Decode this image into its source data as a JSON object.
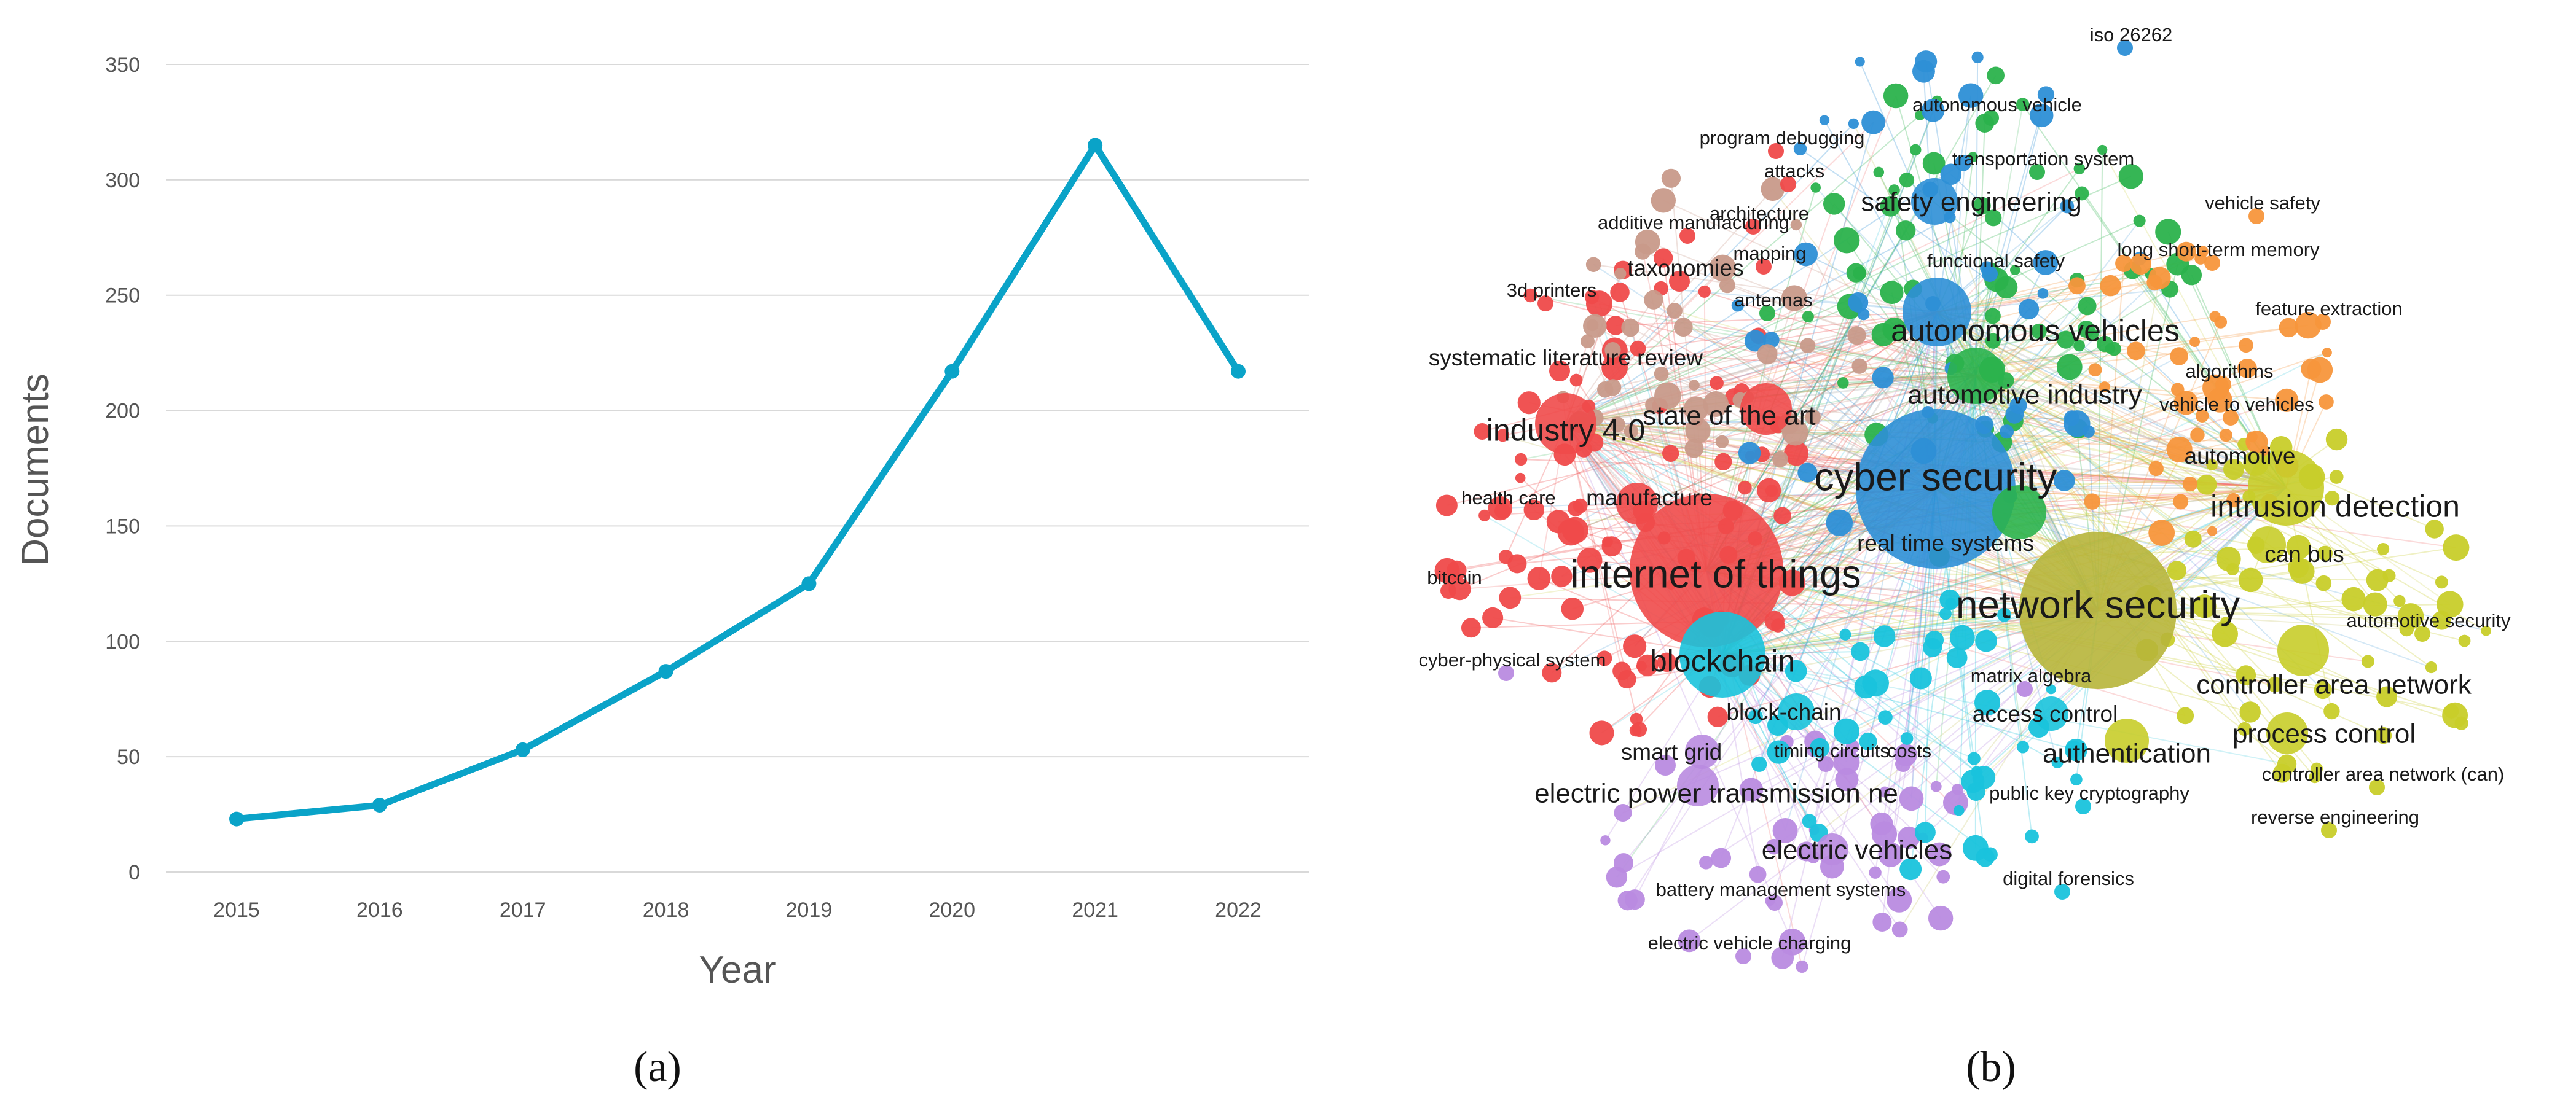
{
  "figure": {
    "panel_a_label": "(a)",
    "panel_b_label": "(b)"
  },
  "chart_data": [
    {
      "type": "line",
      "panel": "(a)",
      "title": "",
      "xlabel": "Year",
      "ylabel": "Documents",
      "categories": [
        "2015",
        "2016",
        "2017",
        "2018",
        "2019",
        "2020",
        "2021",
        "2022"
      ],
      "series": [
        {
          "name": "Documents",
          "values": [
            23,
            29,
            53,
            87,
            125,
            217,
            315,
            217
          ],
          "color": "#0aa3c8"
        }
      ],
      "yticks": [
        0,
        50,
        100,
        150,
        200,
        250,
        300,
        350
      ],
      "ylim": [
        0,
        350
      ],
      "grid": true
    },
    {
      "type": "network",
      "panel": "(b)",
      "clusters": {
        "red": "#ef4a4a",
        "green": "#2bb24c",
        "blue": "#2d8fd6",
        "yellow": "#c8cd2a",
        "purple": "#b98be0",
        "cyan": "#19c3dc",
        "orange": "#f7963c",
        "brown": "#c89a8a",
        "olive": "#b7b53a"
      },
      "keywords": [
        {
          "label": "iso 26262",
          "cluster": "blue",
          "weight": 1
        },
        {
          "label": "autonomous vehicle",
          "cluster": "green",
          "weight": 1
        },
        {
          "label": "program debugging",
          "cluster": "red",
          "weight": 1
        },
        {
          "label": "transportation system",
          "cluster": "green",
          "weight": 1
        },
        {
          "label": "attacks",
          "cluster": "red",
          "weight": 1
        },
        {
          "label": "vehicle safety",
          "cluster": "orange",
          "weight": 1
        },
        {
          "label": "safety engineering",
          "cluster": "blue",
          "weight": 3
        },
        {
          "label": "additive manufacturing",
          "cluster": "red",
          "weight": 1
        },
        {
          "label": "architecture",
          "cluster": "red",
          "weight": 1
        },
        {
          "label": "mapping",
          "cluster": "red",
          "weight": 1
        },
        {
          "label": "functional safety",
          "cluster": "blue",
          "weight": 1
        },
        {
          "label": "long short-term memory",
          "cluster": "orange",
          "weight": 1
        },
        {
          "label": "taxonomies",
          "cluster": "red",
          "weight": 2
        },
        {
          "label": "3d printers",
          "cluster": "red",
          "weight": 1
        },
        {
          "label": "antennas",
          "cluster": "green",
          "weight": 1
        },
        {
          "label": "feature extraction",
          "cluster": "orange",
          "weight": 1
        },
        {
          "label": "autonomous vehicles",
          "cluster": "blue",
          "weight": 4
        },
        {
          "label": "systematic literature review",
          "cluster": "red",
          "weight": 2
        },
        {
          "label": "algorithms",
          "cluster": "orange",
          "weight": 1
        },
        {
          "label": "automotive industry",
          "cluster": "green",
          "weight": 3
        },
        {
          "label": "vehicle to vehicles",
          "cluster": "orange",
          "weight": 1
        },
        {
          "label": "industry 4.0",
          "cluster": "red",
          "weight": 4
        },
        {
          "label": "state of the art",
          "cluster": "red",
          "weight": 3
        },
        {
          "label": "automotive",
          "cluster": "yellow",
          "weight": 2
        },
        {
          "label": "cyber security",
          "cluster": "blue",
          "weight": 5
        },
        {
          "label": "health care",
          "cluster": "red",
          "weight": 1
        },
        {
          "label": "manufacture",
          "cluster": "red",
          "weight": 2
        },
        {
          "label": "intrusion detection",
          "cluster": "yellow",
          "weight": 4
        },
        {
          "label": "real time systems",
          "cluster": "green",
          "weight": 2
        },
        {
          "label": "can bus",
          "cluster": "yellow",
          "weight": 2
        },
        {
          "label": "bitcoin",
          "cluster": "red",
          "weight": 1
        },
        {
          "label": "internet of things",
          "cluster": "red",
          "weight": 5
        },
        {
          "label": "network security",
          "cluster": "olive",
          "weight": 5
        },
        {
          "label": "automotive security",
          "cluster": "yellow",
          "weight": 1
        },
        {
          "label": "cyber-physical system",
          "cluster": "purple",
          "weight": 1
        },
        {
          "label": "blockchain",
          "cluster": "cyan",
          "weight": 4
        },
        {
          "label": "matrix algebra",
          "cluster": "purple",
          "weight": 1
        },
        {
          "label": "controller area network",
          "cluster": "yellow",
          "weight": 3
        },
        {
          "label": "block-chain",
          "cluster": "cyan",
          "weight": 2
        },
        {
          "label": "access control",
          "cluster": "cyan",
          "weight": 2
        },
        {
          "label": "process control",
          "cluster": "yellow",
          "weight": 3
        },
        {
          "label": "smart grid",
          "cluster": "purple",
          "weight": 2
        },
        {
          "label": "timing circuits",
          "cluster": "purple",
          "weight": 1
        },
        {
          "label": "costs",
          "cluster": "purple",
          "weight": 1
        },
        {
          "label": "authentication",
          "cluster": "yellow",
          "weight": 3
        },
        {
          "label": "controller area network (can)",
          "cluster": "yellow",
          "weight": 1
        },
        {
          "label": "electric power transmission ne",
          "cluster": "purple",
          "weight": 3
        },
        {
          "label": "public key cryptography",
          "cluster": "cyan",
          "weight": 1
        },
        {
          "label": "reverse engineering",
          "cluster": "yellow",
          "weight": 1
        },
        {
          "label": "electric vehicles",
          "cluster": "purple",
          "weight": 3
        },
        {
          "label": "battery management systems",
          "cluster": "purple",
          "weight": 1
        },
        {
          "label": "digital forensics",
          "cluster": "cyan",
          "weight": 1
        },
        {
          "label": "electric vehicle charging",
          "cluster": "purple",
          "weight": 1
        }
      ]
    }
  ]
}
